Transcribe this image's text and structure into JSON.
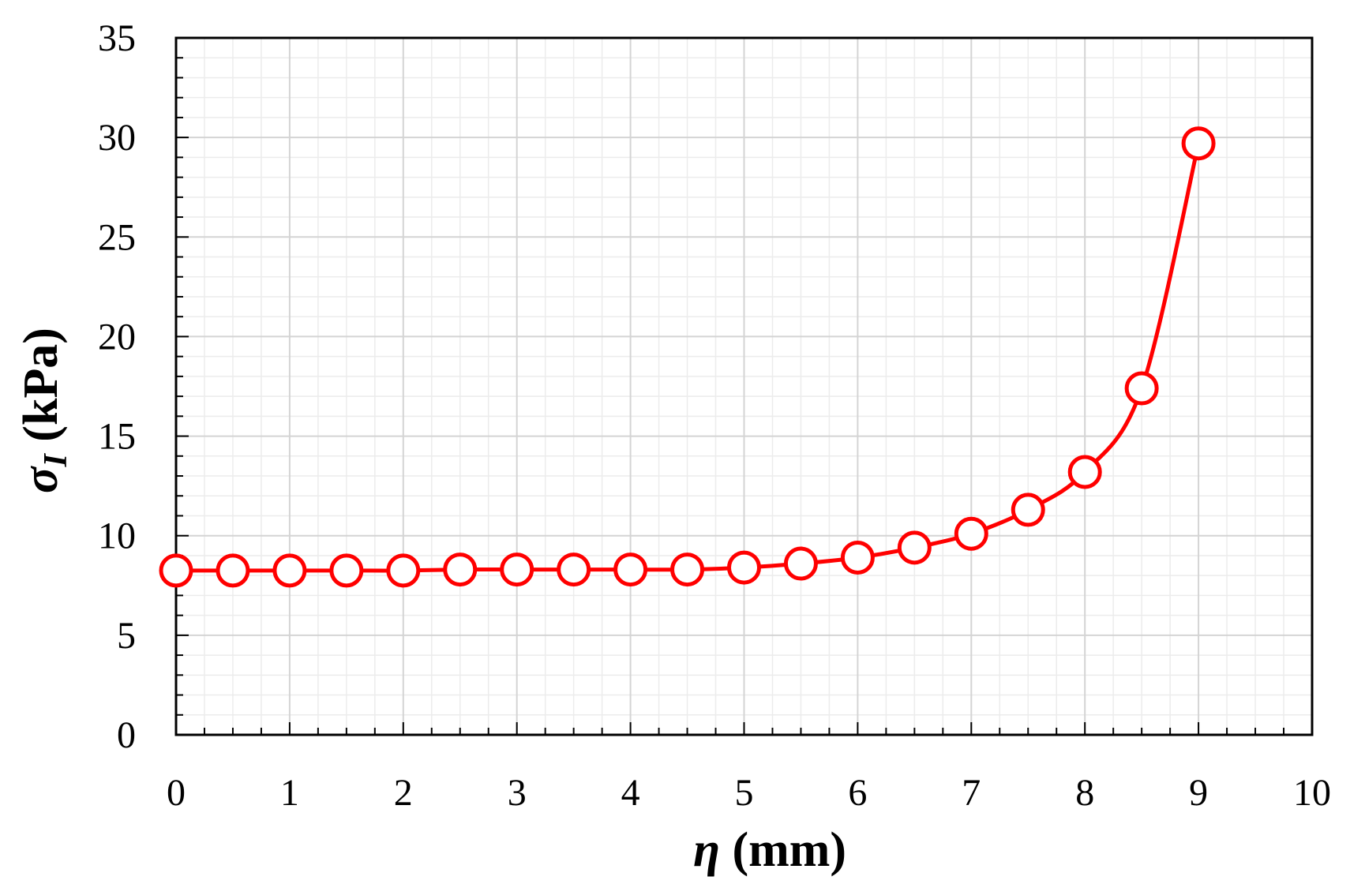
{
  "chart_data": {
    "type": "line",
    "xlabel": {
      "symbol": "η",
      "unit": " (mm)"
    },
    "ylabel": {
      "symbol": "σ",
      "subscript": "I",
      "unit": "  (kPa)"
    },
    "xlim": [
      0,
      10
    ],
    "ylim": [
      0,
      35
    ],
    "x_ticks": [
      "0",
      "1",
      "2",
      "3",
      "4",
      "5",
      "6",
      "7",
      "8",
      "9",
      "10"
    ],
    "y_ticks": [
      "0",
      "5",
      "10",
      "15",
      "20",
      "25",
      "30",
      "35"
    ],
    "grid": true,
    "legend": "none",
    "series": [
      {
        "color": "#ff0000",
        "marker": "open-circle",
        "x": [
          0,
          0.5,
          1,
          1.5,
          2,
          2.5,
          3,
          3.5,
          4,
          4.5,
          5,
          5.5,
          6,
          6.5,
          7,
          7.5,
          8,
          8.5,
          9
        ],
        "y": [
          8.25,
          8.25,
          8.25,
          8.25,
          8.25,
          8.3,
          8.3,
          8.3,
          8.3,
          8.3,
          8.4,
          8.6,
          8.9,
          9.4,
          10.1,
          11.3,
          13.2,
          17.4,
          29.7
        ]
      }
    ]
  }
}
